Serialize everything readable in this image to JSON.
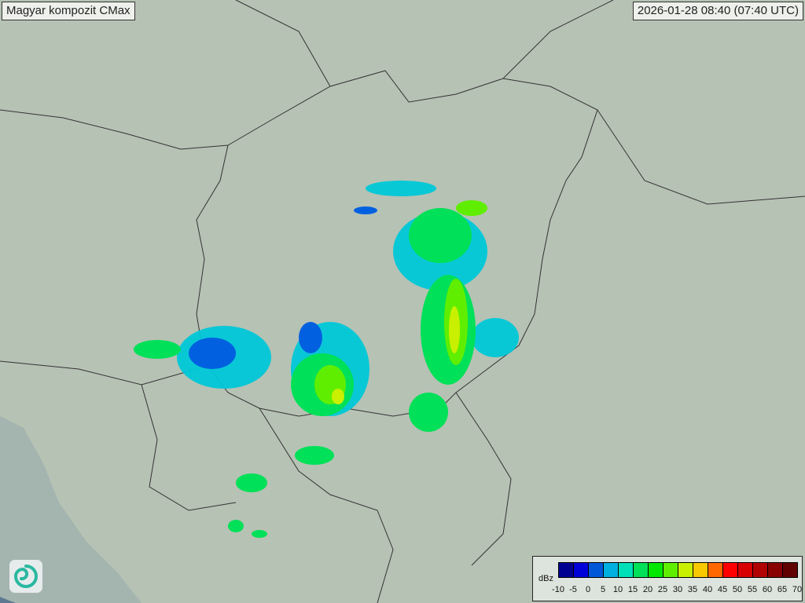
{
  "header": {
    "title": "Magyar kompozit  CMax",
    "timestamp": "2026-01-28 08:40 (07:40 UTC)"
  },
  "legend": {
    "unit": "dBz",
    "ticks": [
      "-10",
      "-5",
      "0",
      "5",
      "10",
      "15",
      "20",
      "25",
      "30",
      "35",
      "40",
      "45",
      "50",
      "55",
      "60",
      "65",
      "70"
    ],
    "colors": [
      "#000090",
      "#0000d8",
      "#0058d8",
      "#00b0e0",
      "#00e0b8",
      "#00e058",
      "#00e800",
      "#60ee00",
      "#c8f000",
      "#f8c800",
      "#ff6800",
      "#ff0000",
      "#d80000",
      "#b00000",
      "#880000",
      "#600000"
    ]
  },
  "logo": {
    "icon": "swirl-logo-icon"
  }
}
